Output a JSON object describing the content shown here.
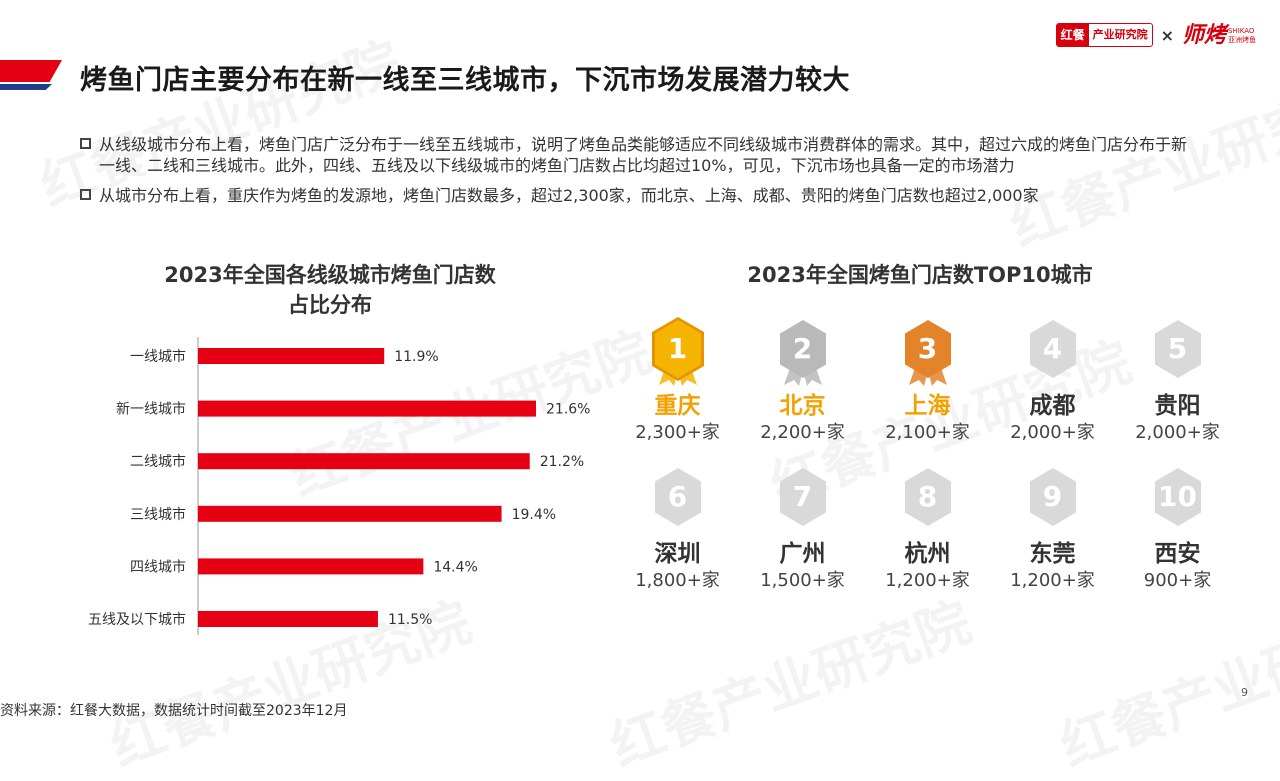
{
  "logos": {
    "hongcan_mark": "红餐",
    "hongcan_text": "产业研究院",
    "separator": "×",
    "shikao_big": "师烤",
    "shikao_small_top": "SHIKAO",
    "shikao_small_bottom": "亚洲烤鱼"
  },
  "watermark": {
    "text": "红餐产业研究院"
  },
  "page_title": "烤鱼门店主要分布在新一线至三线城市，下沉市场发展潜力较大",
  "bullets": [
    "从线级城市分布上看，烤鱼门店广泛分布于一线至五线城市，说明了烤鱼品类能够适应不同线级城市消费群体的需求。其中，超过六成的烤鱼门店分布于新一线、二线和三线城市。此外，四线、五线及以下线级城市的烤鱼门店数占比均超过10%，可见，下沉市场也具备一定的市场潜力",
    "从城市分布上看，重庆作为烤鱼的发源地，烤鱼门店数最多，超过2,300家，而北京、上海、成都、贵阳的烤鱼门店数也超过2,000家"
  ],
  "chart_data": [
    {
      "type": "bar",
      "orientation": "horizontal",
      "title": "2023年全国各线级城市烤鱼门店数占比分布",
      "categories": [
        "一线城市",
        "新一线城市",
        "二线城市",
        "三线城市",
        "四线城市",
        "五线及以下城市"
      ],
      "values": [
        11.9,
        21.6,
        21.2,
        19.4,
        14.4,
        11.5
      ],
      "value_labels": [
        "11.9%",
        "21.6%",
        "21.2%",
        "19.4%",
        "14.4%",
        "11.5%"
      ],
      "unit": "%",
      "xlim": [
        0,
        21.6
      ],
      "bar_color": "#e50014",
      "grid": false
    },
    {
      "type": "table",
      "title": "2023年全国烤鱼门店数TOP10城市",
      "rows": [
        {
          "rank": "1",
          "city": "重庆",
          "count": "2,300+家",
          "tier": "gold"
        },
        {
          "rank": "2",
          "city": "北京",
          "count": "2,200+家",
          "tier": "silver"
        },
        {
          "rank": "3",
          "city": "上海",
          "count": "2,100+家",
          "tier": "bronze"
        },
        {
          "rank": "4",
          "city": "成都",
          "count": "2,000+家",
          "tier": "gray"
        },
        {
          "rank": "5",
          "city": "贵阳",
          "count": "2,000+家",
          "tier": "gray"
        },
        {
          "rank": "6",
          "city": "深圳",
          "count": "1,800+家",
          "tier": "gray"
        },
        {
          "rank": "7",
          "city": "广州",
          "count": "1,500+家",
          "tier": "gray"
        },
        {
          "rank": "8",
          "city": "杭州",
          "count": "1,200+家",
          "tier": "gray"
        },
        {
          "rank": "9",
          "city": "东莞",
          "count": "1,200+家",
          "tier": "gray"
        },
        {
          "rank": "10",
          "city": "西安",
          "count": "900+家",
          "tier": "gray"
        }
      ]
    }
  ],
  "colors": {
    "gold_badge": "#f5b400",
    "gold_badge_dark": "#e69500",
    "silver_badge": "#b9b9b9",
    "bronze_badge": "#e4842a",
    "gray_badge": "#d9d9d9",
    "gold_text": "#f4a000"
  },
  "footer": {
    "source": "资料来源：红餐大数据，数据统计时间截至2023年12月",
    "page_number": "9"
  }
}
